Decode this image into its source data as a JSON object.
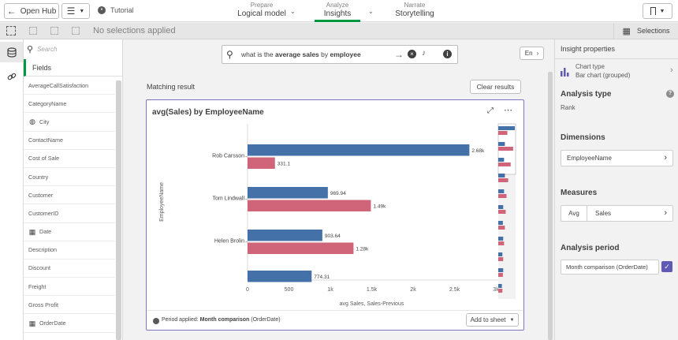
{
  "header": {
    "open_hub": "Open Hub",
    "app_name": "Tutorial",
    "nav": [
      {
        "small": "Prepare",
        "big": "Logical model"
      },
      {
        "small": "Analyze",
        "big": "Insights"
      },
      {
        "small": "Narrate",
        "big": "Storytelling"
      }
    ]
  },
  "toolbar": {
    "selections_status": "No selections applied",
    "selections_label": "Selections"
  },
  "fields_panel": {
    "search_placeholder": "Search",
    "title": "Fields",
    "items": [
      "AverageCallSatisfaction",
      "CategoryName",
      "City",
      "ContactName",
      "Cost of Sale",
      "Country",
      "Customer",
      "CustomerID",
      "Date",
      "Description",
      "Discount",
      "Freight",
      "Gross Profit",
      "OrderDate"
    ]
  },
  "search": {
    "query_prefix": "what is the ",
    "query_bold1": "average sales",
    "query_mid": " by ",
    "query_bold2": "employee",
    "lang": "En"
  },
  "results": {
    "heading": "Matching result",
    "clear_label": "Clear results",
    "card_title": "avg(Sales) by EmployeeName",
    "period_label": "Period applied:",
    "period_value": "Month comparison",
    "period_field": "(OrderDate)",
    "add_to_sheet": "Add to sheet"
  },
  "chart_data": {
    "type": "bar",
    "orientation": "horizontal",
    "title": "avg(Sales) by EmployeeName",
    "categories": [
      "Rob Carsson",
      "Tom Lindwall",
      "Helen Brolin",
      ""
    ],
    "series": [
      {
        "name": "avg Sales",
        "color": "#4472a8",
        "values": [
          2680,
          969.94,
          903.64,
          774.31
        ],
        "labels": [
          "2.68k",
          "969.94",
          "903.64",
          "774.31"
        ]
      },
      {
        "name": "Sales-Previous",
        "color": "#d0657a",
        "values": [
          331.1,
          1490,
          1280,
          null
        ],
        "labels": [
          "331.1",
          "1.49k",
          "1.28k",
          ""
        ]
      }
    ],
    "xlabel": "avg Sales, Sales-Previous",
    "ylabel": "EmployeeName",
    "xlim": [
      0,
      3000
    ],
    "xticks": [
      0,
      500,
      1000,
      1500,
      2000,
      2500,
      3000
    ],
    "xtick_labels": [
      "0",
      "500",
      "1k",
      "1.5k",
      "2k",
      "2.5k",
      "3k"
    ]
  },
  "properties": {
    "title": "Insight properties",
    "chart_type_label": "Chart type",
    "chart_type_value": "Bar chart (grouped)",
    "analysis_type_heading": "Analysis type",
    "analysis_type_value": "Rank",
    "dimensions_heading": "Dimensions",
    "dimension_value": "EmployeeName",
    "measures_heading": "Measures",
    "measure_agg": "Avg",
    "measure_value": "Sales",
    "period_heading": "Analysis period",
    "period_value": "Month comparison (OrderDate)"
  },
  "colors": {
    "accent": "#009845",
    "series_blue": "#4472a8",
    "series_red": "#d0657a",
    "selection_border": "#7b78c4"
  }
}
